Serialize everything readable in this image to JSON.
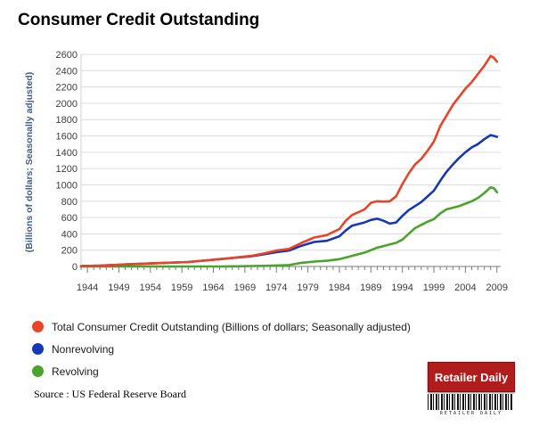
{
  "title": "Consumer Credit Outstanding",
  "source": "Source : US Federal Reserve Board",
  "logo": {
    "brand": "Retailer Daily",
    "tagline": "RETAILER DAILY"
  },
  "legend": [
    {
      "label": "Total Consumer Credit Outstanding (Billions of dollars; Seasonally adjusted)",
      "color": "#e8442a"
    },
    {
      "label": "Nonrevolving",
      "color": "#1638b4"
    },
    {
      "label": "Revolving",
      "color": "#48a42a"
    }
  ],
  "chart_data": {
    "type": "line",
    "title": "Consumer Credit Outstanding",
    "xlabel": "",
    "ylabel": "(Billions of dollars; Seasonally adjusted)",
    "xlim": [
      1943,
      2009.6
    ],
    "ylim": [
      0,
      2600
    ],
    "x_ticks": [
      1944,
      1949,
      1954,
      1959,
      1964,
      1969,
      1974,
      1979,
      1984,
      1989,
      1994,
      1999,
      2004,
      2009
    ],
    "y_ticks": [
      0,
      200,
      400,
      600,
      800,
      1000,
      1200,
      1400,
      1600,
      1800,
      2000,
      2200,
      2400,
      2600
    ],
    "grid": true,
    "legend_position": "bottom",
    "series": [
      {
        "name": "Total Consumer Credit Outstanding (Billions of dollars; Seasonally adjusted)",
        "color": "#e8442a",
        "x": [
          1943,
          1946,
          1950,
          1955,
          1960,
          1965,
          1970,
          1972,
          1974,
          1976,
          1978,
          1980,
          1982,
          1984,
          1985,
          1986,
          1988,
          1989,
          1990,
          1991,
          1992,
          1993,
          1994,
          1995,
          1996,
          1997,
          1998,
          1999,
          2000,
          2001,
          2002,
          2003,
          2004,
          2005,
          2006,
          2007,
          2008,
          2008.5,
          2009
        ],
        "y": [
          5,
          10,
          25,
          40,
          55,
          90,
          130,
          160,
          195,
          215,
          290,
          355,
          385,
          460,
          560,
          630,
          700,
          780,
          800,
          795,
          800,
          860,
          1010,
          1140,
          1250,
          1320,
          1420,
          1530,
          1720,
          1850,
          1980,
          2080,
          2180,
          2260,
          2360,
          2460,
          2580,
          2560,
          2510
        ]
      },
      {
        "name": "Nonrevolving",
        "color": "#1638b4",
        "x": [
          1943,
          1946,
          1950,
          1955,
          1960,
          1965,
          1970,
          1972,
          1974,
          1976,
          1978,
          1980,
          1982,
          1984,
          1985,
          1986,
          1988,
          1989,
          1990,
          1991,
          1992,
          1993,
          1994,
          1995,
          1996,
          1997,
          1998,
          1999,
          2000,
          2001,
          2002,
          2003,
          2004,
          2005,
          2006,
          2007,
          2008,
          2008.5,
          2009
        ],
        "y": [
          5,
          10,
          25,
          40,
          55,
          90,
          125,
          150,
          175,
          195,
          255,
          300,
          315,
          370,
          440,
          500,
          540,
          570,
          585,
          560,
          525,
          540,
          620,
          690,
          740,
          790,
          860,
          930,
          1050,
          1160,
          1250,
          1330,
          1400,
          1460,
          1500,
          1560,
          1610,
          1600,
          1590
        ]
      },
      {
        "name": "Revolving",
        "color": "#48a42a",
        "x": [
          1943,
          1950,
          1960,
          1965,
          1968,
          1970,
          1972,
          1974,
          1976,
          1978,
          1980,
          1982,
          1984,
          1986,
          1988,
          1990,
          1991,
          1992,
          1993,
          1994,
          1995,
          1996,
          1997,
          1998,
          1999,
          2000,
          2001,
          2002,
          2003,
          2004,
          2005,
          2006,
          2007,
          2008,
          2008.5,
          2009
        ],
        "y": [
          0,
          0,
          0,
          0,
          2,
          5,
          8,
          12,
          18,
          45,
          60,
          70,
          90,
          130,
          170,
          230,
          250,
          270,
          290,
          330,
          400,
          470,
          510,
          550,
          580,
          650,
          700,
          720,
          740,
          770,
          800,
          840,
          900,
          970,
          960,
          910
        ]
      }
    ]
  }
}
